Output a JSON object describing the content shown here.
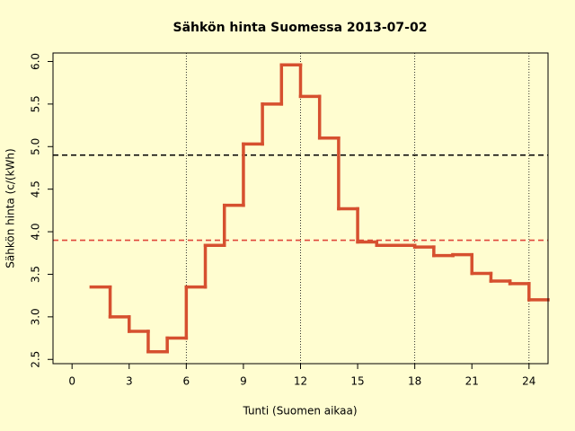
{
  "chart_data": {
    "type": "line",
    "step": true,
    "title": "Sähkön hinta Suomessa 2013-07-02",
    "x_label": "Tunti (Suomen aikaa)",
    "y_label": "Sähkön hinta (c/(kWh)",
    "x": [
      1,
      2,
      3,
      4,
      5,
      6,
      7,
      8,
      9,
      10,
      11,
      12,
      13,
      14,
      15,
      16,
      17,
      18,
      19,
      20,
      21,
      22,
      23,
      24
    ],
    "values": [
      3.35,
      3.0,
      2.83,
      2.59,
      2.75,
      3.35,
      3.84,
      4.31,
      5.03,
      5.5,
      5.96,
      5.59,
      5.1,
      4.27,
      3.88,
      3.84,
      3.84,
      3.82,
      3.72,
      3.73,
      3.51,
      3.42,
      3.39,
      3.2
    ],
    "color": "#d6502f",
    "xlim": [
      -1,
      25
    ],
    "ylim": [
      2.45,
      6.1
    ],
    "xticks": [
      0,
      3,
      6,
      9,
      12,
      15,
      18,
      21,
      24
    ],
    "yticks": [
      2.5,
      {
        "value": 3,
        "label": "3.0"
      },
      3.5,
      {
        "value": 4,
        "label": "4.0"
      },
      4.5,
      {
        "value": 5,
        "label": "5.0"
      },
      5.5,
      {
        "value": 6,
        "label": "6.0"
      }
    ],
    "xgrid": [
      6,
      12,
      18,
      24
    ],
    "reference_lines": [
      {
        "value": 4.9,
        "color": "#000000"
      },
      {
        "value": 3.9,
        "color": "#e0453a"
      }
    ]
  }
}
